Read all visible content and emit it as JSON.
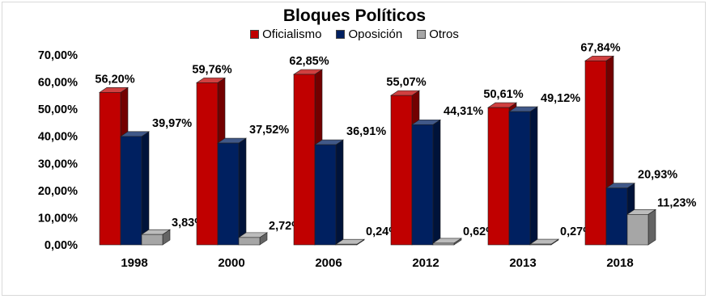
{
  "chart_data": {
    "type": "bar",
    "title": "Bloques Políticos",
    "categories": [
      "1998",
      "2000",
      "2006",
      "2012",
      "2013",
      "2018"
    ],
    "series": [
      {
        "name": "Oficialismo",
        "color": "#c00000",
        "values": [
          56.2,
          59.76,
          62.85,
          55.07,
          50.61,
          67.84
        ],
        "labels": [
          "56,20%",
          "59,76%",
          "62,85%",
          "55,07%",
          "50,61%",
          "67,84%"
        ]
      },
      {
        "name": "Oposición",
        "color": "#002060",
        "values": [
          39.97,
          37.52,
          36.91,
          44.31,
          49.12,
          20.93
        ],
        "labels": [
          "39,97%",
          "37,52%",
          "36,91%",
          "44,31%",
          "49,12%",
          "20,93%"
        ]
      },
      {
        "name": "Otros",
        "color": "#a6a6a6",
        "values": [
          3.83,
          2.72,
          0.24,
          0.62,
          0.27,
          11.23
        ],
        "labels": [
          "3,83%",
          "2,72%",
          "0,24%",
          "0,62%",
          "0,27%",
          "11,23%"
        ]
      }
    ],
    "y_ticks": [
      0,
      10,
      20,
      30,
      40,
      50,
      60,
      70
    ],
    "y_tick_labels": [
      "0,00%",
      "10,00%",
      "20,00%",
      "30,00%",
      "40,00%",
      "50,00%",
      "60,00%",
      "70,00%"
    ],
    "ylim": [
      0,
      70
    ],
    "grid": false,
    "legend": "top-center",
    "bar_style": "3d"
  }
}
